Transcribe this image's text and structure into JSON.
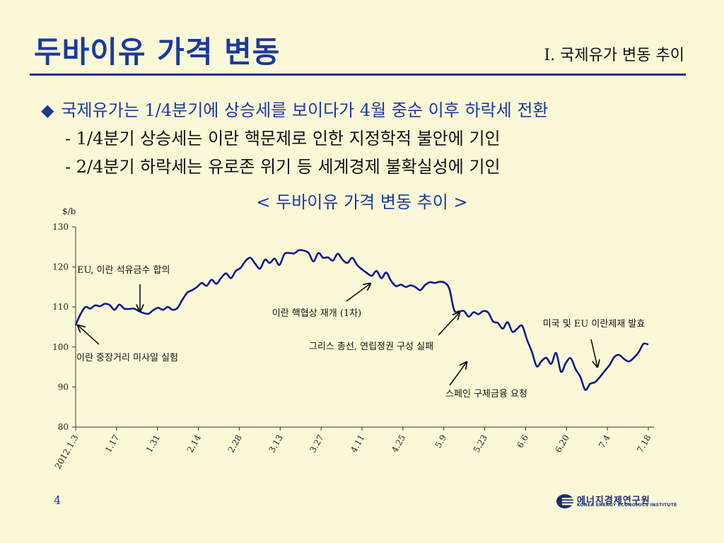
{
  "slide": {
    "title": "두바이유 가격 변동",
    "section": "I. 국제유가 변동 추이",
    "bullet_symbol": "◆",
    "bullet_main": "국제유가는 1/4분기에 상승세를 보이다가 4월 중순 이후 하락세 전환",
    "bullet_sub_1": "- 1/4분기 상승세는 이란 핵문제로 인한 지정학적 불안에 기인",
    "bullet_sub_2": "- 2/4분기 하락세는 유로존 위기 등 세계경제 불확실성에 기인",
    "chart_title": "< 두바이유 가격 변동 추이 >",
    "page_number": "4",
    "logo_korean": "에너지경제연구원",
    "logo_english": "KOREA ENERGY ECONOMICS INSTITUTE"
  },
  "colors": {
    "background": "#fbf8d8",
    "title": "#1b3a9c",
    "line": "#0b1a8c",
    "rule": "#1f2f8a"
  },
  "chart_data": {
    "type": "line",
    "ylabel": "$/b",
    "ylim": [
      80,
      130
    ],
    "yticks": [
      80,
      90,
      100,
      110,
      120,
      130
    ],
    "xticklabels": [
      "2012.1.3",
      "1.17",
      "1.31",
      "2.14",
      "2.28",
      "3.13",
      "3.27",
      "4.11",
      "4.25",
      "5.9",
      "5.23",
      "6.6",
      "6.20",
      "7.4",
      "7.18"
    ],
    "grid": false,
    "series": [
      {
        "values": [
          105.5,
          108.2,
          110.0,
          109.6,
          110.4,
          110.2,
          110.8,
          110.5,
          109.3,
          110.6,
          109.6,
          109.5,
          109.6,
          109.0,
          108.5,
          108.3,
          109.2,
          109.8,
          109.3,
          110.0,
          109.3,
          109.8,
          111.8,
          113.6,
          114.2,
          115.0,
          116.0,
          115.3,
          116.8,
          115.8,
          117.3,
          118.4,
          117.2,
          119.0,
          119.8,
          121.5,
          122.3,
          120.8,
          119.6,
          121.8,
          121.0,
          122.1,
          120.5,
          123.2,
          123.5,
          123.4,
          124.2,
          124.1,
          123.5,
          121.4,
          123.5,
          122.3,
          122.4,
          121.6,
          123.3,
          121.8,
          121.0,
          122.3,
          120.5,
          119.4,
          118.5,
          117.8,
          119.0,
          117.2,
          118.6,
          116.5,
          115.2,
          115.6,
          115.0,
          115.4,
          115.0,
          114.2,
          115.5,
          116.2,
          116.0,
          116.3,
          116.1,
          114.5,
          109.2,
          108.9,
          109.0,
          107.6,
          108.7,
          108.2,
          109.0,
          108.6,
          106.4,
          106.0,
          104.6,
          106.2,
          103.8,
          104.6,
          105.3,
          101.8,
          98.8,
          95.2,
          96.5,
          97.3,
          95.8,
          98.5,
          93.8,
          96.0,
          97.2,
          94.5,
          92.5,
          89.3,
          90.8,
          91.2,
          92.5,
          94.0,
          95.5,
          97.5,
          98.0,
          97.0,
          96.4,
          97.3,
          98.7,
          100.8,
          100.6
        ]
      }
    ],
    "annotations": [
      {
        "text": "EU, 이란 석유금수 합의",
        "x": 14,
        "y": 120.8,
        "target": [
          15.5,
          108.8
        ]
      },
      {
        "text": "이란 중장거리 미사일 실험",
        "x": 1,
        "y": 98.5,
        "target": [
          0.2,
          105.3
        ]
      },
      {
        "text": "이란 핵협상 재개 (1차)",
        "x": 47,
        "y": 108.5,
        "target": [
          64,
          115.5
        ]
      },
      {
        "text": "그리스 총선, 연립정권 구성 실패",
        "x": 53,
        "y": 101.2,
        "target": [
          84,
          108.5
        ]
      },
      {
        "text": "미국 및 EU 이란제재 발효",
        "x": 112,
        "y": 107.0,
        "target": [
          110,
          94.2
        ]
      },
      {
        "text": "스페인 구제금융 요청",
        "x": 88,
        "y": 88.0,
        "target": [
          97,
          96.7
        ]
      }
    ]
  }
}
